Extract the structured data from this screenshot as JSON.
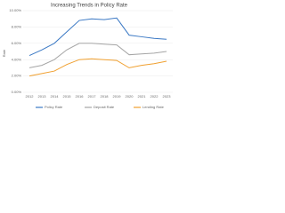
{
  "chart_data": {
    "type": "line",
    "title": "Increasing Trends in Policy Rate",
    "y_label": "Rate",
    "categories": [
      "2012",
      "2013",
      "2014",
      "2015",
      "2016",
      "2017",
      "2018",
      "2019",
      "2020",
      "2021",
      "2022",
      "2023"
    ],
    "series": [
      {
        "name": "Policy Rate",
        "color": "#3a78c4",
        "values": [
          4.5,
          5.2,
          6.0,
          7.4,
          8.8,
          9.0,
          8.9,
          9.1,
          7.0,
          6.8,
          6.6,
          6.5
        ]
      },
      {
        "name": "Deposit Rate",
        "color": "#a5a5a5",
        "values": [
          3.0,
          3.3,
          4.0,
          5.2,
          6.0,
          6.0,
          5.9,
          5.8,
          4.6,
          4.7,
          4.8,
          5.0
        ]
      },
      {
        "name": "Lending Rate",
        "color": "#f0a030",
        "values": [
          2.0,
          2.3,
          2.6,
          3.4,
          4.0,
          4.1,
          4.0,
          3.9,
          3.0,
          3.3,
          3.5,
          3.8
        ]
      }
    ],
    "ylim": [
      0,
      10
    ],
    "yticks": [
      {
        "value": 0,
        "label": "0.00%"
      },
      {
        "value": 2,
        "label": "2.00%"
      },
      {
        "value": 4,
        "label": "4.00%"
      },
      {
        "value": 6,
        "label": "6.00%"
      },
      {
        "value": 8,
        "label": "8.00%"
      },
      {
        "value": 10,
        "label": "10.00%"
      }
    ],
    "grid": true
  }
}
